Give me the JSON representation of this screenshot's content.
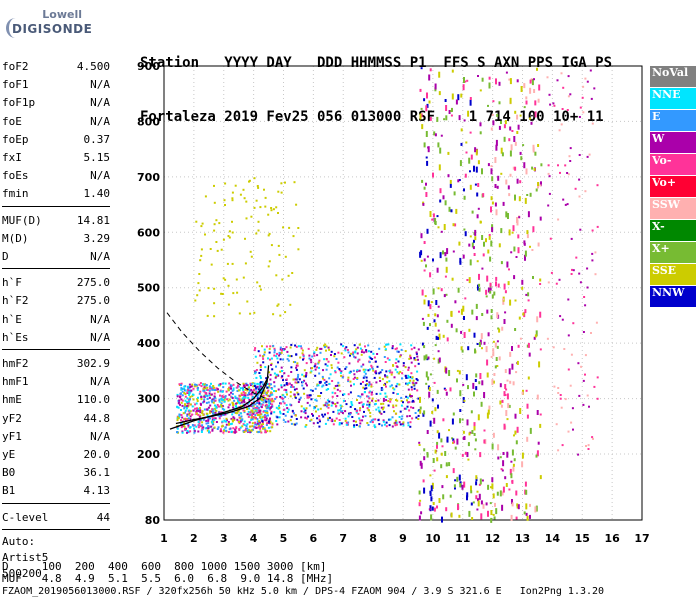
{
  "logo": {
    "line1": "Lowell",
    "line2": "DIGISONDE"
  },
  "header": {
    "line1": "Station   YYYY DAY   DDD HHMMSS P1  FFS S AXN PPS IGA PS",
    "line2": "Fortaleza 2019 Fev25 056 013000 RSF    1 714 100 10+ 11"
  },
  "params": {
    "group1": [
      {
        "label": "foF2",
        "value": "4.500"
      },
      {
        "label": "foF1",
        "value": "N/A"
      },
      {
        "label": "foF1p",
        "value": "N/A"
      },
      {
        "label": "foE",
        "value": "N/A"
      },
      {
        "label": "foEp",
        "value": "0.37"
      },
      {
        "label": "fxI",
        "value": "5.15"
      },
      {
        "label": "foEs",
        "value": "N/A"
      },
      {
        "label": "fmin",
        "value": "1.40"
      }
    ],
    "group2": [
      {
        "label": "MUF(D)",
        "value": "14.81"
      },
      {
        "label": "M(D)",
        "value": "3.29"
      },
      {
        "label": "D",
        "value": "N/A"
      }
    ],
    "group3": [
      {
        "label": "h`F",
        "value": "275.0"
      },
      {
        "label": "h`F2",
        "value": "275.0"
      },
      {
        "label": "h`E",
        "value": "N/A"
      },
      {
        "label": "h`Es",
        "value": "N/A"
      }
    ],
    "group4": [
      {
        "label": "hmF2",
        "value": "302.9"
      },
      {
        "label": "hmF1",
        "value": "N/A"
      },
      {
        "label": "hmE",
        "value": "110.0"
      },
      {
        "label": "yF2",
        "value": "44.8"
      },
      {
        "label": "yF1",
        "value": "N/A"
      },
      {
        "label": "yE",
        "value": "20.0"
      },
      {
        "label": "B0",
        "value": "36.1"
      },
      {
        "label": "B1",
        "value": "4.13"
      }
    ],
    "clevel": {
      "label": "C-level",
      "value": "44"
    },
    "auto": [
      "Auto:",
      "Artist5",
      "500200"
    ]
  },
  "legend": [
    {
      "label": "NoVal",
      "color": "#808080"
    },
    {
      "label": "NNE",
      "color": "#00e5ff"
    },
    {
      "label": "E",
      "color": "#3399ff"
    },
    {
      "label": "W",
      "color": "#aa00aa"
    },
    {
      "label": "Vo-",
      "color": "#ff3399"
    },
    {
      "label": "Vo+",
      "color": "#ff0033"
    },
    {
      "label": "SSW",
      "color": "#ffb0b0"
    },
    {
      "label": "X-",
      "color": "#008800"
    },
    {
      "label": "X+",
      "color": "#77bb33"
    },
    {
      "label": "SSE",
      "color": "#cccc00"
    },
    {
      "label": "NNW",
      "color": "#0000cc"
    }
  ],
  "footer": {
    "d_row": "D     100  200  400  600  800 1000 1500 3000 [km]",
    "muf_row": "MUF   4.8  4.9  5.1  5.5  6.0  6.8  9.0 14.8 [MHz]",
    "file_row": "FZAOM_2019056013000.RSF / 320fx256h 50 kHz 5.0 km / DPS-4 FZAOM 904 / 3.9 S 321.6 E   Ion2Png 1.3.20"
  },
  "chart_data": {
    "type": "scatter",
    "title": "",
    "xlabel": "",
    "ylabel": "",
    "xlim": [
      1,
      17
    ],
    "ylim": [
      80,
      900
    ],
    "xticks": [
      "1",
      "2",
      "3",
      "4",
      "5",
      "6",
      "7",
      "8",
      "9",
      "10",
      "11",
      "12",
      "13",
      "14",
      "15",
      "16",
      "17"
    ],
    "yticks": [
      "80",
      "200",
      "300",
      "400",
      "500",
      "600",
      "700",
      "800",
      "900"
    ],
    "grid": true,
    "echo_clusters": [
      {
        "x": [
          1.4,
          4.6
        ],
        "y": [
          240,
          330
        ],
        "color_mix": [
          "E",
          "NNE",
          "SSE",
          "Vo-",
          "W"
        ],
        "density": "high"
      },
      {
        "x": [
          4.0,
          9.5
        ],
        "y": [
          250,
          400
        ],
        "color_mix": [
          "SSE",
          "NNE",
          "E",
          "Vo-",
          "W",
          "NNW"
        ],
        "density": "high"
      },
      {
        "x": [
          9.5,
          11.5
        ],
        "y": [
          80,
          900
        ],
        "color_mix": [
          "SSE",
          "X+",
          "Vo-",
          "W",
          "NNW"
        ],
        "density": "medium"
      },
      {
        "x": [
          11.5,
          13.6
        ],
        "y": [
          80,
          900
        ],
        "color_mix": [
          "Vo-",
          "SSW",
          "W",
          "SSE",
          "X+"
        ],
        "density": "medium"
      },
      {
        "x": [
          13.8,
          15.5
        ],
        "y": [
          200,
          900
        ],
        "color_mix": [
          "W",
          "SSW",
          "Vo-"
        ],
        "density": "low"
      },
      {
        "x": [
          2.0,
          5.5
        ],
        "y": [
          450,
          700
        ],
        "color_mix": [
          "SSE"
        ],
        "density": "low"
      }
    ],
    "traced_trace": {
      "x": [
        1.4,
        2.0,
        2.6,
        3.2,
        3.8,
        4.2,
        4.45,
        4.5
      ],
      "y": [
        255,
        262,
        268,
        275,
        285,
        300,
        330,
        360
      ]
    },
    "profile_curve": {
      "x": [
        1.2,
        2.0,
        3.0,
        3.6,
        4.0,
        4.3,
        4.5
      ],
      "y": [
        245,
        260,
        275,
        285,
        300,
        320,
        340
      ]
    },
    "dashed_curve": {
      "x": [
        1.1,
        1.6,
        2.2,
        2.8,
        3.4,
        4.0,
        4.5
      ],
      "y": [
        455,
        420,
        385,
        355,
        330,
        310,
        298
      ]
    }
  }
}
